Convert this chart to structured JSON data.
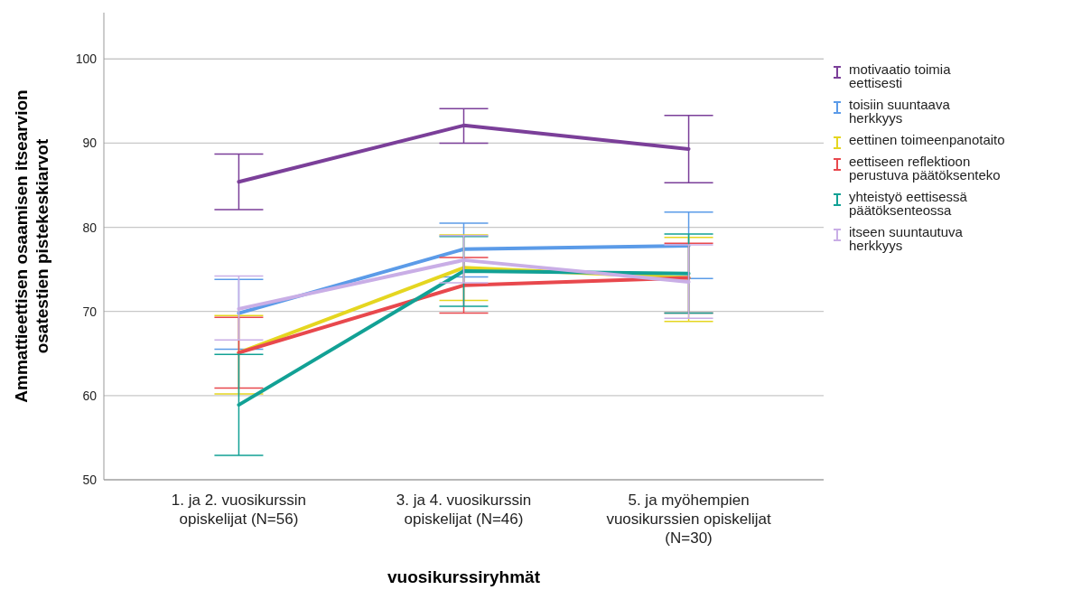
{
  "chart_data": {
    "type": "line",
    "xlabel": "vuosikurssiryhmät",
    "ylabel": "Ammattieettisen osaamisen itsearvion osatestien pistekeskiarvot",
    "categories": [
      "1. ja 2. vuosikurssin opiskelijat (N=56)",
      "3. ja 4. vuosikurssin opiskelijat (N=46)",
      "5. ja myöhempien vuosikurssien opiskelijat (N=30)"
    ],
    "ylim": [
      50,
      105.5
    ],
    "yticks": [
      50,
      60,
      70,
      80,
      90,
      100
    ],
    "grid": "y",
    "legend": "right",
    "marker": "none",
    "line_style": "solid",
    "series": [
      {
        "name": "motivaatio toimia eettisesti",
        "color": "#7b3f99",
        "values": [
          85.4,
          92.1,
          89.3
        ],
        "errors": [
          [
            82.1,
            88.7
          ],
          [
            90.0,
            94.1
          ],
          [
            85.3,
            93.3
          ]
        ]
      },
      {
        "name": "toisiin suuntaava herkkyys",
        "color": "#5b9be8",
        "values": [
          69.8,
          77.4,
          77.8
        ],
        "errors": [
          [
            65.5,
            73.8
          ],
          [
            74.1,
            80.5
          ],
          [
            73.9,
            81.8
          ]
        ]
      },
      {
        "name": "eettinen toimeenpanotaito",
        "color": "#e5d620",
        "values": [
          65.1,
          75.2,
          74.0
        ],
        "errors": [
          [
            60.2,
            69.5
          ],
          [
            71.3,
            79.1
          ],
          [
            68.8,
            78.8
          ]
        ]
      },
      {
        "name": "eettiseen reflektioon perustuva päätöksenteko",
        "color": "#e8484d",
        "values": [
          65.1,
          73.1,
          74.0
        ],
        "errors": [
          [
            60.9,
            69.3
          ],
          [
            69.8,
            76.4
          ],
          [
            69.8,
            78.1
          ]
        ]
      },
      {
        "name": "yhteistyö eettisessä päätöksenteossa",
        "color": "#12a195",
        "values": [
          58.9,
          74.8,
          74.5
        ],
        "errors": [
          [
            52.9,
            64.9
          ],
          [
            70.6,
            78.9
          ],
          [
            69.8,
            79.2
          ]
        ]
      },
      {
        "name": "itseen suuntautuva herkkyys",
        "color": "#c9aee6",
        "values": [
          70.3,
          76.1,
          73.5
        ],
        "errors": [
          [
            66.6,
            74.2
          ],
          [
            73.4,
            79.0
          ],
          [
            69.2,
            77.9
          ]
        ]
      }
    ]
  }
}
